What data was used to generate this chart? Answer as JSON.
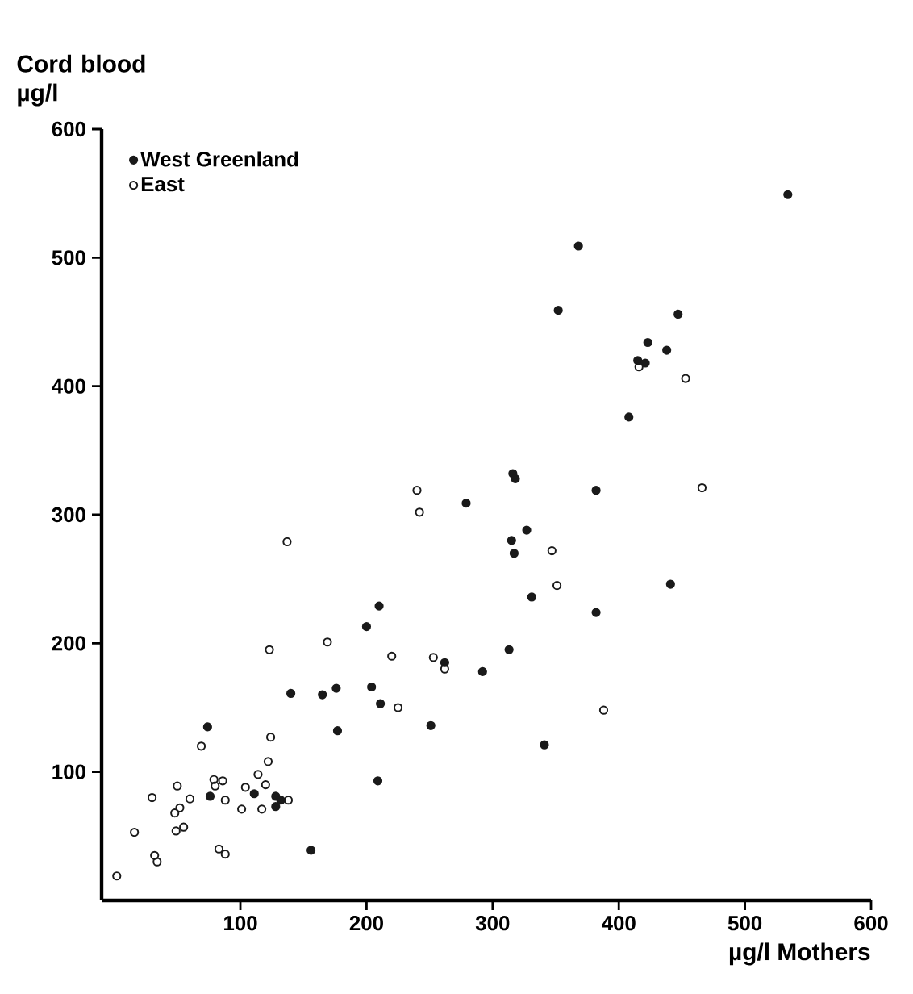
{
  "chart_data": {
    "type": "scatter",
    "xlabel": "µg/l Mothers",
    "ylabel": "Cord blood µg/l",
    "xlim": [
      -10,
      600
    ],
    "ylim": [
      0,
      600
    ],
    "xticks": [
      100,
      200,
      300,
      400,
      500,
      600
    ],
    "yticks": [
      100,
      200,
      300,
      400,
      500,
      600
    ],
    "legend": "top left",
    "marker": "circle",
    "grid": false,
    "series": [
      {
        "name": "West Greenland",
        "color": "#1a1a1a",
        "x": [
          74,
          76,
          111,
          128,
          128,
          132,
          140,
          156,
          165,
          176,
          177,
          200,
          204,
          209,
          210,
          211,
          251,
          262,
          279,
          292,
          313,
          315,
          316,
          317,
          318,
          327,
          331,
          341,
          352,
          368,
          382,
          382,
          408,
          415,
          421,
          423,
          438,
          441,
          447,
          534
        ],
        "values": [
          135,
          81,
          83,
          81,
          73,
          78,
          161,
          39,
          160,
          165,
          132,
          213,
          166,
          93,
          229,
          153,
          136,
          185,
          309,
          178,
          195,
          280,
          332,
          270,
          328,
          288,
          236,
          121,
          459,
          509,
          319,
          224,
          376,
          420,
          418,
          434,
          428,
          246,
          456,
          549
        ]
      },
      {
        "name": "East",
        "color": "#1a1a1a",
        "x": [
          2,
          16,
          30,
          32,
          34,
          48,
          49,
          50,
          52,
          55,
          60,
          69,
          79,
          80,
          83,
          86,
          88,
          88,
          101,
          104,
          114,
          117,
          120,
          122,
          123,
          124,
          137,
          138,
          169,
          220,
          225,
          240,
          242,
          253,
          262,
          347,
          351,
          388,
          416,
          453,
          466
        ],
        "values": [
          19,
          53,
          80,
          35,
          30,
          68,
          54,
          89,
          72,
          57,
          79,
          120,
          94,
          89,
          40,
          93,
          78,
          36,
          71,
          88,
          98,
          71,
          90,
          108,
          195,
          127,
          279,
          78,
          201,
          190,
          150,
          319,
          302,
          189,
          180,
          272,
          245,
          148,
          415,
          406,
          321
        ]
      }
    ]
  }
}
